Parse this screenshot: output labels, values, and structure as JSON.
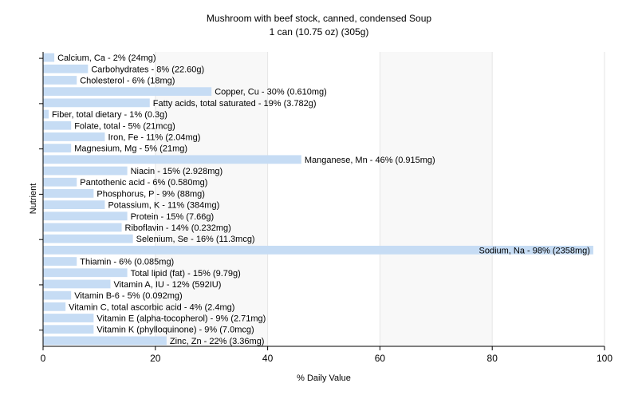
{
  "chart_data": {
    "type": "bar",
    "orientation": "horizontal",
    "title": "Mushroom with beef stock, canned, condensed Soup",
    "subtitle": "1 can (10.75 oz) (305g)",
    "xlabel": "% Daily Value",
    "ylabel": "Nutrient",
    "xlim": [
      0,
      100
    ],
    "xticks": [
      "0",
      "20",
      "40",
      "60",
      "80",
      "100"
    ],
    "grid": true,
    "bar_color": "#c6dcf4",
    "categories": [
      "Calcium, Ca",
      "Carbohydrates",
      "Cholesterol",
      "Copper, Cu",
      "Fatty acids, total saturated",
      "Fiber, total dietary",
      "Folate, total",
      "Iron, Fe",
      "Magnesium, Mg",
      "Manganese, Mn",
      "Niacin",
      "Pantothenic acid",
      "Phosphorus, P",
      "Potassium, K",
      "Protein",
      "Riboflavin",
      "Selenium, Se",
      "Sodium, Na",
      "Thiamin",
      "Total lipid (fat)",
      "Vitamin A, IU",
      "Vitamin B-6",
      "Vitamin C, total ascorbic acid",
      "Vitamin E (alpha-tocopherol)",
      "Vitamin K (phylloquinone)",
      "Zinc, Zn"
    ],
    "values": [
      2,
      8,
      6,
      30,
      19,
      1,
      5,
      11,
      5,
      46,
      15,
      6,
      9,
      11,
      15,
      14,
      16,
      98,
      6,
      15,
      12,
      5,
      4,
      9,
      9,
      22
    ],
    "labels": [
      "Calcium, Ca - 2% (24mg)",
      "Carbohydrates - 8% (22.60g)",
      "Cholesterol - 6% (18mg)",
      "Copper, Cu - 30% (0.610mg)",
      "Fatty acids, total saturated - 19% (3.782g)",
      "Fiber, total dietary - 1% (0.3g)",
      "Folate, total - 5% (21mcg)",
      "Iron, Fe - 11% (2.04mg)",
      "Magnesium, Mg - 5% (21mg)",
      "Manganese, Mn - 46% (0.915mg)",
      "Niacin - 15% (2.928mg)",
      "Pantothenic acid - 6% (0.580mg)",
      "Phosphorus, P - 9% (88mg)",
      "Potassium, K - 11% (384mg)",
      "Protein - 15% (7.66g)",
      "Riboflavin - 14% (0.232mg)",
      "Selenium, Se - 16% (11.3mcg)",
      "Sodium, Na - 98% (2358mg)",
      "Thiamin - 6% (0.085mg)",
      "Total lipid (fat) - 15% (9.79g)",
      "Vitamin A, IU - 12% (592IU)",
      "Vitamin B-6 - 5% (0.092mg)",
      "Vitamin C, total ascorbic acid - 4% (2.4mg)",
      "Vitamin E (alpha-tocopherol) - 9% (2.71mg)",
      "Vitamin K (phylloquinone) - 9% (7.0mcg)",
      "Zinc, Zn - 22% (3.36mg)"
    ]
  }
}
